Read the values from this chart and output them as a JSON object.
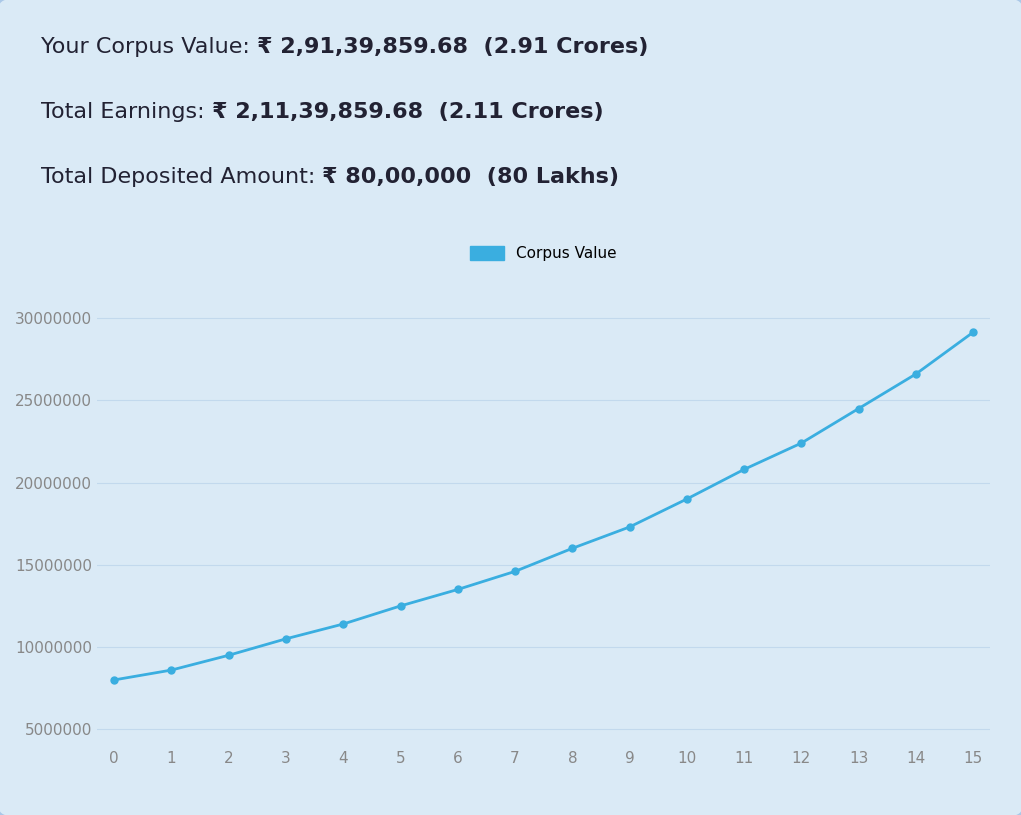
{
  "title_lines": [
    {
      "label": "Your Corpus Value: ",
      "value": "₹ 2,91,39,859.68  (2.91 Crores)"
    },
    {
      "label": "Total Earnings: ",
      "value": "₹ 2,11,39,859.68  (2.11 Crores)"
    },
    {
      "label": "Total Deposited Amount: ",
      "value": "₹ 80,00,000  (80 Lakhs)"
    }
  ],
  "x_values": [
    0,
    1,
    2,
    3,
    4,
    5,
    6,
    7,
    8,
    9,
    10,
    11,
    12,
    13,
    14,
    15
  ],
  "y_values": [
    8000000,
    8600000,
    9500000,
    10500000,
    11400000,
    12500000,
    13500000,
    14600000,
    16000000,
    17300000,
    19000000,
    20800000,
    22400000,
    24500000,
    26600000,
    29139859.68
  ],
  "line_color": "#3aaee0",
  "marker_color": "#3aaee0",
  "legend_label": "Corpus Value",
  "legend_patch_color": "#3aaee0",
  "background_color": "#daeaf6",
  "plot_bg_color": "#daeaf6",
  "grid_color": "#c0d8ec",
  "yticks": [
    5000000,
    10000000,
    15000000,
    20000000,
    25000000,
    30000000
  ],
  "xticks": [
    0,
    1,
    2,
    3,
    4,
    5,
    6,
    7,
    8,
    9,
    10,
    11,
    12,
    13,
    14,
    15
  ],
  "ylim": [
    4000000,
    31500000
  ],
  "xlim": [
    -0.3,
    15.3
  ],
  "label_color": "#222233",
  "value_color": "#222233",
  "tick_color": "#888888",
  "label_fontsize": 16,
  "tick_fontsize": 11
}
